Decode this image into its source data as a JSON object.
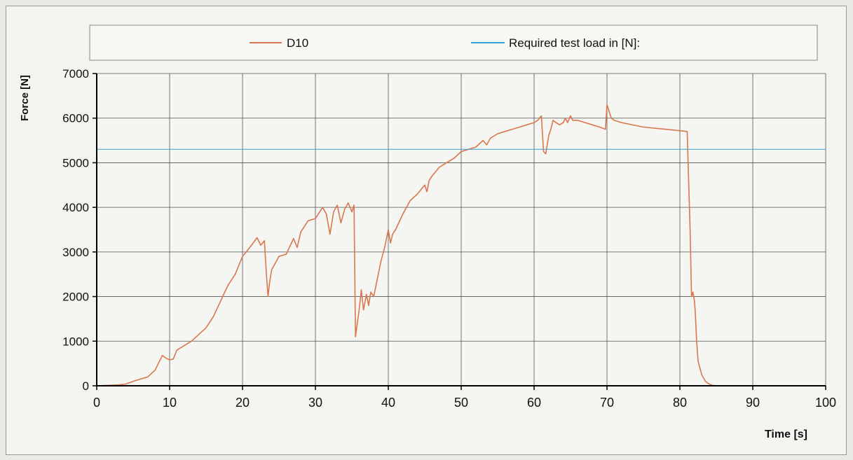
{
  "chart_data": {
    "type": "line",
    "xlabel": "Time [s]",
    "ylabel": "Force [N]",
    "xlim": [
      0,
      100
    ],
    "ylim": [
      0,
      7000
    ],
    "x_ticks": [
      0,
      10,
      20,
      30,
      40,
      50,
      60,
      70,
      80,
      90,
      100
    ],
    "y_ticks": [
      0,
      1000,
      2000,
      3000,
      4000,
      5000,
      6000,
      7000
    ],
    "grid": true,
    "legend_position": "top",
    "series": [
      {
        "name": "D10",
        "color": "#d9774f",
        "x": [
          0,
          3,
          4,
          5,
          6,
          7,
          8,
          9,
          9.5,
          10,
          10.5,
          11,
          12,
          13,
          14,
          15,
          16,
          17,
          18,
          19,
          20,
          21,
          22,
          22.5,
          23,
          23.3,
          23.5,
          23.7,
          24,
          25,
          26,
          27,
          27.5,
          28,
          29,
          30,
          31,
          31.5,
          32,
          32.5,
          33,
          33.5,
          34,
          34.5,
          35,
          35.3,
          35.5,
          36,
          36.3,
          36.6,
          37,
          37.3,
          37.6,
          38,
          39,
          39.5,
          40,
          40.3,
          40.6,
          41,
          42,
          43,
          44,
          45,
          45.3,
          45.6,
          46,
          47,
          48,
          49,
          50,
          51,
          52,
          53,
          53.5,
          54,
          55,
          56,
          57,
          58,
          59,
          60,
          60.5,
          61,
          61.3,
          61.6,
          62,
          62.3,
          62.6,
          63,
          63.5,
          64,
          64.3,
          64.6,
          65,
          65.3,
          66,
          67,
          68,
          69,
          69.8,
          70,
          70.3,
          70.6,
          71,
          72,
          75,
          78,
          81,
          81.4,
          81.6,
          81.8,
          82,
          82.1,
          82.3,
          82.5,
          83,
          83.5,
          84,
          84.5,
          85,
          100
        ],
        "y": [
          0,
          20,
          40,
          100,
          150,
          200,
          350,
          680,
          620,
          580,
          600,
          800,
          900,
          1000,
          1150,
          1300,
          1550,
          1900,
          2250,
          2500,
          2900,
          3100,
          3320,
          3150,
          3250,
          2450,
          2000,
          2300,
          2600,
          2900,
          2950,
          3300,
          3100,
          3450,
          3700,
          3750,
          4000,
          3850,
          3400,
          3900,
          4050,
          3650,
          3950,
          4100,
          3900,
          4050,
          1100,
          1700,
          2150,
          1700,
          2050,
          1800,
          2100,
          2000,
          2800,
          3100,
          3500,
          3200,
          3400,
          3500,
          3850,
          4150,
          4300,
          4500,
          4350,
          4600,
          4700,
          4900,
          5000,
          5100,
          5250,
          5300,
          5350,
          5500,
          5400,
          5550,
          5650,
          5700,
          5750,
          5800,
          5850,
          5900,
          5950,
          6050,
          5250,
          5200,
          5600,
          5750,
          5950,
          5900,
          5850,
          5900,
          6000,
          5900,
          6050,
          5950,
          5950,
          5900,
          5850,
          5800,
          5750,
          6300,
          6150,
          6000,
          5950,
          5900,
          5800,
          5750,
          5700,
          3500,
          2000,
          2100,
          1900,
          1700,
          1000,
          550,
          250,
          100,
          40,
          10,
          0,
          0
        ]
      },
      {
        "name": "Required test load in [N]:",
        "color": "#3aa0d0",
        "x": [
          0,
          100
        ],
        "y": [
          5300,
          5300
        ]
      }
    ]
  }
}
